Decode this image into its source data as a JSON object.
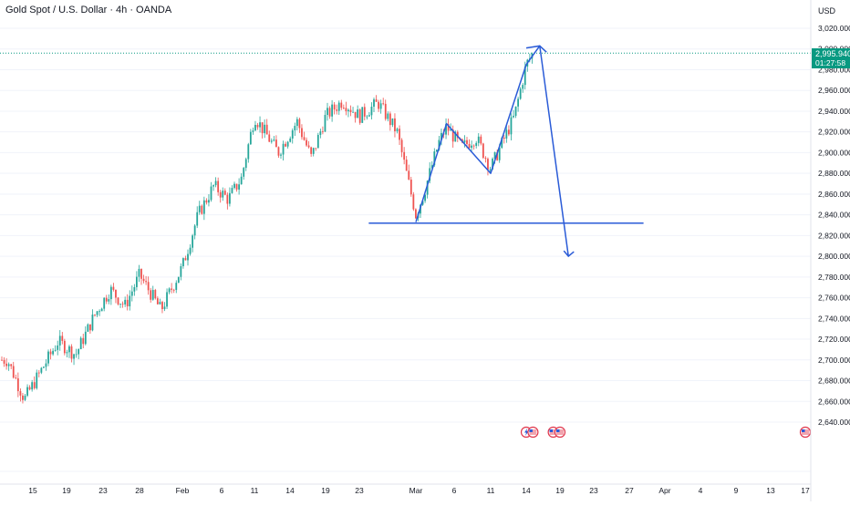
{
  "header": {
    "title": "Gold Spot / U.S. Dollar · 4h · OANDA"
  },
  "price_axis": {
    "currency": "USD",
    "current_price": "2,995.940",
    "countdown": "01:27:58"
  },
  "colors": {
    "up": "#26a69a",
    "down": "#ef5350",
    "drawing": "#2a5bd7",
    "price_tag": "#089981",
    "axis_text": "#131722",
    "grid": "#f0f3fa"
  },
  "chart_data": {
    "type": "candlestick",
    "title": "Gold Spot / U.S. Dollar · 4h · OANDA",
    "xlabel": "",
    "ylabel": "USD",
    "ylim": [
      2620,
      3030
    ],
    "y_ticks": [
      2640,
      2660,
      2680,
      2700,
      2720,
      2740,
      2760,
      2780,
      2800,
      2820,
      2840,
      2860,
      2880,
      2900,
      2920,
      2940,
      2960,
      2980,
      3000,
      3020
    ],
    "y_tick_labels": [
      "2,640.000",
      "2,660.000",
      "2,680.000",
      "2,700.000",
      "2,720.000",
      "2,740.000",
      "2,760.000",
      "2,780.000",
      "2,800.000",
      "2,820.000",
      "2,840.000",
      "2,860.000",
      "2,880.000",
      "2,900.000",
      "2,920.000",
      "2,940.000",
      "2,960.000",
      "2,980.000",
      "3,000.000",
      "3,020.000"
    ],
    "x_ticks": [
      {
        "label": "15",
        "date": "2025-01-15"
      },
      {
        "label": "19",
        "date": "2025-01-19"
      },
      {
        "label": "23",
        "date": "2025-01-23"
      },
      {
        "label": "28",
        "date": "2025-01-28"
      },
      {
        "label": "Feb",
        "date": "2025-02-01"
      },
      {
        "label": "6",
        "date": "2025-02-06"
      },
      {
        "label": "11",
        "date": "2025-02-11"
      },
      {
        "label": "14",
        "date": "2025-02-14"
      },
      {
        "label": "19",
        "date": "2025-02-19"
      },
      {
        "label": "23",
        "date": "2025-02-23"
      },
      {
        "label": "Mar",
        "date": "2025-03-01"
      },
      {
        "label": "6",
        "date": "2025-03-06"
      },
      {
        "label": "11",
        "date": "2025-03-11"
      },
      {
        "label": "14",
        "date": "2025-03-14"
      },
      {
        "label": "19",
        "date": "2025-03-19"
      },
      {
        "label": "23",
        "date": "2025-03-23"
      },
      {
        "label": "27",
        "date": "2025-03-27"
      },
      {
        "label": "Apr",
        "date": "2025-04-01"
      },
      {
        "label": "4",
        "date": "2025-04-04"
      },
      {
        "label": "9",
        "date": "2025-04-09"
      },
      {
        "label": "13",
        "date": "2025-04-13"
      },
      {
        "label": "17",
        "date": "2025-04-17"
      }
    ],
    "series": [
      {
        "points": [
          {
            "date": "2025-01-12",
            "close": 2700
          },
          {
            "date": "2025-01-14",
            "close": 2662
          },
          {
            "date": "2025-01-16",
            "close": 2690
          },
          {
            "date": "2025-01-18",
            "close": 2718
          },
          {
            "date": "2025-01-20",
            "close": 2705
          },
          {
            "date": "2025-01-22",
            "close": 2742
          },
          {
            "date": "2025-01-24",
            "close": 2768
          },
          {
            "date": "2025-01-26",
            "close": 2752
          },
          {
            "date": "2025-01-28",
            "close": 2782
          },
          {
            "date": "2025-01-30",
            "close": 2748
          },
          {
            "date": "2025-02-01",
            "close": 2790
          },
          {
            "date": "2025-02-03",
            "close": 2840
          },
          {
            "date": "2025-02-05",
            "close": 2868
          },
          {
            "date": "2025-02-07",
            "close": 2855
          },
          {
            "date": "2025-02-09",
            "close": 2875
          },
          {
            "date": "2025-02-11",
            "close": 2935
          },
          {
            "date": "2025-02-13",
            "close": 2900
          },
          {
            "date": "2025-02-15",
            "close": 2930
          },
          {
            "date": "2025-02-17",
            "close": 2895
          },
          {
            "date": "2025-02-19",
            "close": 2935
          },
          {
            "date": "2025-02-21",
            "close": 2950
          },
          {
            "date": "2025-02-23",
            "close": 2935
          },
          {
            "date": "2025-02-25",
            "close": 2948
          },
          {
            "date": "2025-02-27",
            "close": 2920
          },
          {
            "date": "2025-02-28",
            "close": 2880
          },
          {
            "date": "2025-03-01",
            "close": 2840
          },
          {
            "date": "2025-03-02",
            "close": 2860
          },
          {
            "date": "2025-03-04",
            "close": 2910
          },
          {
            "date": "2025-03-05",
            "close": 2925
          },
          {
            "date": "2025-03-07",
            "close": 2905
          },
          {
            "date": "2025-03-09",
            "close": 2915
          },
          {
            "date": "2025-03-11",
            "close": 2885
          },
          {
            "date": "2025-03-12",
            "close": 2910
          },
          {
            "date": "2025-03-13",
            "close": 2935
          },
          {
            "date": "2025-03-14",
            "close": 2985
          },
          {
            "date": "2025-03-15",
            "close": 2996
          }
        ]
      }
    ],
    "drawings": {
      "support_level": 2832,
      "support_from": "2025-02-24",
      "support_to": "2025-03-29",
      "path": [
        {
          "date": "2025-03-01",
          "value": 2833
        },
        {
          "date": "2025-03-05",
          "value": 2928
        },
        {
          "date": "2025-03-11",
          "value": 2880
        },
        {
          "date": "2025-03-14",
          "value": 2985
        },
        {
          "date": "2025-03-16",
          "value": 3003
        },
        {
          "date": "2025-03-20",
          "value": 2800
        }
      ],
      "top_marker": [
        {
          "date": "2025-03-14",
          "value": 3001
        },
        {
          "date": "2025-03-16",
          "value": 3003
        },
        {
          "date": "2025-03-17",
          "value": 2997
        }
      ],
      "events": [
        "2025-03-14",
        "2025-03-15",
        "2025-03-18",
        "2025-03-19",
        "2025-04-17"
      ]
    }
  }
}
